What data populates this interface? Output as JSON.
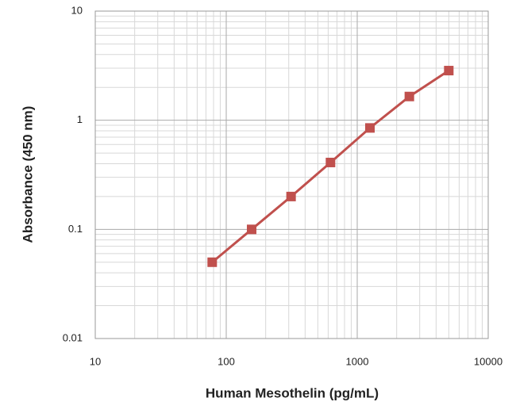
{
  "chart_data": {
    "type": "line",
    "x_label": "Human Mesothelin (pg/mL)",
    "y_label": "Absorbance (450 nm)",
    "x": [
      78.125,
      156.25,
      312.5,
      625,
      1250,
      2500,
      5000
    ],
    "values": [
      0.05,
      0.1,
      0.2,
      0.41,
      0.85,
      1.65,
      2.85
    ],
    "color": "#c0504d",
    "x_log": true,
    "y_log": true,
    "xlim": [
      10,
      10000
    ],
    "xticks": [
      10,
      100,
      1000,
      10000
    ],
    "ylim": [
      0.01,
      10
    ],
    "yticks": [
      0.01,
      0.1,
      1,
      10
    ],
    "grid": true,
    "minor_grid": true,
    "marker": "square"
  }
}
